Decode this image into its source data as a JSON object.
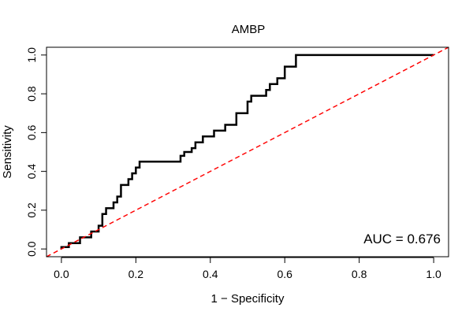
{
  "chart_data": {
    "type": "line",
    "title": "AMBP",
    "xlabel": "1 − Specificity",
    "ylabel": "Sensitivity",
    "xlim": [
      -0.04,
      1.04
    ],
    "ylim": [
      -0.04,
      1.04
    ],
    "x_ticks": [
      0.0,
      0.2,
      0.4,
      0.6,
      0.8,
      1.0
    ],
    "x_tick_labels": [
      "0.0",
      "0.2",
      "0.4",
      "0.6",
      "0.8",
      "1.0"
    ],
    "y_ticks": [
      0.0,
      0.2,
      0.4,
      0.6,
      0.8,
      1.0
    ],
    "y_tick_labels": [
      "0.0",
      "0.2",
      "0.4",
      "0.6",
      "0.8",
      "1.0"
    ],
    "grid": false,
    "annotation": "AUC = 0.676",
    "series": [
      {
        "color": "#000000",
        "style": "solid",
        "x": [
          0.0,
          0.0,
          0.02,
          0.02,
          0.05,
          0.05,
          0.08,
          0.08,
          0.1,
          0.1,
          0.11,
          0.11,
          0.12,
          0.12,
          0.14,
          0.14,
          0.15,
          0.15,
          0.16,
          0.16,
          0.18,
          0.18,
          0.19,
          0.19,
          0.2,
          0.2,
          0.21,
          0.21,
          0.32,
          0.32,
          0.33,
          0.33,
          0.35,
          0.35,
          0.36,
          0.36,
          0.38,
          0.38,
          0.41,
          0.41,
          0.44,
          0.44,
          0.47,
          0.47,
          0.5,
          0.5,
          0.51,
          0.51,
          0.55,
          0.55,
          0.56,
          0.56,
          0.58,
          0.58,
          0.6,
          0.6,
          0.63,
          0.63,
          1.0
        ],
        "y": [
          0.0,
          0.01,
          0.01,
          0.03,
          0.03,
          0.06,
          0.06,
          0.09,
          0.09,
          0.12,
          0.12,
          0.18,
          0.18,
          0.21,
          0.21,
          0.24,
          0.24,
          0.27,
          0.27,
          0.33,
          0.33,
          0.36,
          0.36,
          0.39,
          0.39,
          0.42,
          0.42,
          0.45,
          0.45,
          0.48,
          0.48,
          0.5,
          0.5,
          0.52,
          0.52,
          0.55,
          0.55,
          0.58,
          0.58,
          0.61,
          0.61,
          0.64,
          0.64,
          0.7,
          0.7,
          0.76,
          0.76,
          0.79,
          0.79,
          0.82,
          0.82,
          0.85,
          0.85,
          0.88,
          0.88,
          0.94,
          0.94,
          1.0,
          1.0
        ]
      },
      {
        "color": "#ff0000",
        "style": "dashed",
        "x": [
          -0.04,
          1.04
        ],
        "y": [
          -0.04,
          1.04
        ]
      }
    ]
  }
}
